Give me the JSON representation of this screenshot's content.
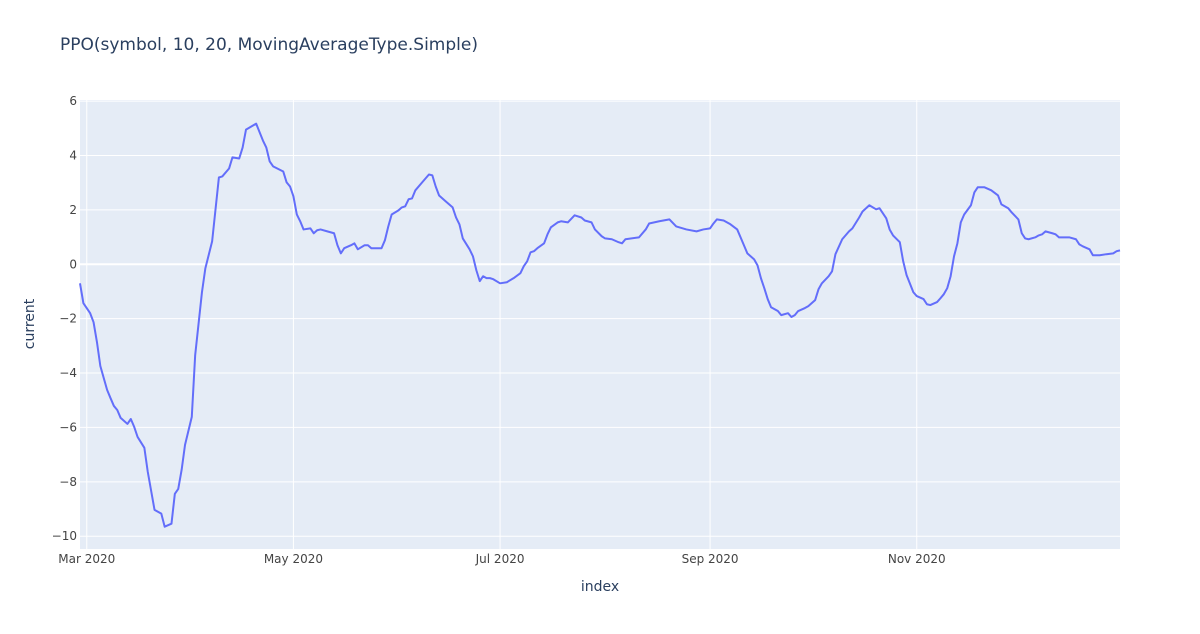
{
  "chart_data": {
    "type": "line",
    "title": "PPO(symbol, 10, 20, MovingAverageType.Simple)",
    "x_label": "index",
    "y_label": "current",
    "color": "#636efa",
    "grid": true,
    "xlim": [
      "2020-02-28",
      "2020-12-31"
    ],
    "ylim": [
      -10.47,
      6.04
    ],
    "xticks": [
      {
        "value": "2020-03-01",
        "label": "Mar 2020"
      },
      {
        "value": "2020-05-01",
        "label": "May 2020"
      },
      {
        "value": "2020-07-01",
        "label": "Jul 2020"
      },
      {
        "value": "2020-09-01",
        "label": "Sep 2020"
      },
      {
        "value": "2020-11-01",
        "label": "Nov 2020"
      }
    ],
    "yticks": [
      {
        "value": -10,
        "label": "−10"
      },
      {
        "value": -8,
        "label": "−8"
      },
      {
        "value": -6,
        "label": "−6"
      },
      {
        "value": -4,
        "label": "−4"
      },
      {
        "value": -2,
        "label": "−2"
      },
      0,
      2,
      4,
      6
    ],
    "x": [
      "2020-02-28",
      "2020-02-29",
      "2020-03-02",
      "2020-03-03",
      "2020-03-04",
      "2020-03-05",
      "2020-03-07",
      "2020-03-08",
      "2020-03-09",
      "2020-03-10",
      "2020-03-11",
      "2020-03-13",
      "2020-03-14",
      "2020-03-15",
      "2020-03-16",
      "2020-03-18",
      "2020-03-19",
      "2020-03-21",
      "2020-03-23",
      "2020-03-24",
      "2020-03-26",
      "2020-03-27",
      "2020-03-28",
      "2020-03-29",
      "2020-03-30",
      "2020-04-01",
      "2020-04-02",
      "2020-04-04",
      "2020-04-05",
      "2020-04-07",
      "2020-04-09",
      "2020-04-10",
      "2020-04-12",
      "2020-04-13",
      "2020-04-15",
      "2020-04-16",
      "2020-04-17",
      "2020-04-20",
      "2020-04-22",
      "2020-04-23",
      "2020-04-24",
      "2020-04-25",
      "2020-04-28",
      "2020-04-29",
      "2020-04-30",
      "2020-05-01",
      "2020-05-02",
      "2020-05-03",
      "2020-05-04",
      "2020-05-06",
      "2020-05-07",
      "2020-05-08",
      "2020-05-09",
      "2020-05-11",
      "2020-05-13",
      "2020-05-14",
      "2020-05-15",
      "2020-05-16",
      "2020-05-18",
      "2020-05-19",
      "2020-05-20",
      "2020-05-22",
      "2020-05-23",
      "2020-05-24",
      "2020-05-25",
      "2020-05-27",
      "2020-05-28",
      "2020-05-29",
      "2020-05-30",
      "2020-06-01",
      "2020-06-02",
      "2020-06-03",
      "2020-06-04",
      "2020-06-05",
      "2020-06-06",
      "2020-06-08",
      "2020-06-10",
      "2020-06-11",
      "2020-06-12",
      "2020-06-13",
      "2020-06-15",
      "2020-06-17",
      "2020-06-18",
      "2020-06-19",
      "2020-06-20",
      "2020-06-22",
      "2020-06-23",
      "2020-06-24",
      "2020-06-25",
      "2020-06-26",
      "2020-06-27",
      "2020-06-28",
      "2020-06-29",
      "2020-07-01",
      "2020-07-03",
      "2020-07-05",
      "2020-07-07",
      "2020-07-08",
      "2020-07-09",
      "2020-07-10",
      "2020-07-11",
      "2020-07-12",
      "2020-07-14",
      "2020-07-15",
      "2020-07-16",
      "2020-07-18",
      "2020-07-19",
      "2020-07-21",
      "2020-07-23",
      "2020-07-25",
      "2020-07-26",
      "2020-07-28",
      "2020-07-29",
      "2020-07-31",
      "2020-08-01",
      "2020-08-03",
      "2020-08-05",
      "2020-08-06",
      "2020-08-07",
      "2020-08-11",
      "2020-08-13",
      "2020-08-14",
      "2020-08-17",
      "2020-08-20",
      "2020-08-22",
      "2020-08-25",
      "2020-08-28",
      "2020-08-30",
      "2020-09-01",
      "2020-09-02",
      "2020-09-03",
      "2020-09-05",
      "2020-09-07",
      "2020-09-09",
      "2020-09-10",
      "2020-09-12",
      "2020-09-14",
      "2020-09-15",
      "2020-09-16",
      "2020-09-17",
      "2020-09-18",
      "2020-09-19",
      "2020-09-21",
      "2020-09-22",
      "2020-09-24",
      "2020-09-25",
      "2020-09-26",
      "2020-09-27",
      "2020-09-29",
      "2020-09-30",
      "2020-10-02",
      "2020-10-03",
      "2020-10-04",
      "2020-10-06",
      "2020-10-07",
      "2020-10-08",
      "2020-10-10",
      "2020-10-12",
      "2020-10-13",
      "2020-10-15",
      "2020-10-16",
      "2020-10-18",
      "2020-10-20",
      "2020-10-21",
      "2020-10-23",
      "2020-10-24",
      "2020-10-25",
      "2020-10-27",
      "2020-10-28",
      "2020-10-29",
      "2020-10-31",
      "2020-11-01",
      "2020-11-03",
      "2020-11-04",
      "2020-11-05",
      "2020-11-07",
      "2020-11-08",
      "2020-11-09",
      "2020-11-10",
      "2020-11-11",
      "2020-11-12",
      "2020-11-13",
      "2020-11-14",
      "2020-11-15",
      "2020-11-17",
      "2020-11-18",
      "2020-11-19",
      "2020-11-21",
      "2020-11-23",
      "2020-11-25",
      "2020-11-26",
      "2020-11-28",
      "2020-11-29",
      "2020-12-01",
      "2020-12-02",
      "2020-12-03",
      "2020-12-04",
      "2020-12-06",
      "2020-12-07",
      "2020-12-08",
      "2020-12-09",
      "2020-12-11",
      "2020-12-12",
      "2020-12-13",
      "2020-12-16",
      "2020-12-18",
      "2020-12-19",
      "2020-12-20",
      "2020-12-22",
      "2020-12-23",
      "2020-12-25",
      "2020-12-27",
      "2020-12-29",
      "2020-12-30",
      "2020-12-31"
    ],
    "values": [
      -0.7,
      -1.43,
      -1.8,
      -2.13,
      -2.86,
      -3.74,
      -4.62,
      -4.92,
      -5.21,
      -5.36,
      -5.65,
      -5.87,
      -5.69,
      -5.98,
      -6.35,
      -6.75,
      -7.63,
      -9.03,
      -9.17,
      -9.65,
      -9.54,
      -8.44,
      -8.26,
      -7.56,
      -6.64,
      -5.61,
      -3.34,
      -1.03,
      -0.15,
      0.84,
      3.19,
      3.23,
      3.52,
      3.93,
      3.89,
      4.29,
      4.95,
      5.17,
      4.55,
      4.29,
      3.78,
      3.6,
      3.41,
      3.01,
      2.86,
      2.5,
      1.83,
      1.58,
      1.28,
      1.32,
      1.14,
      1.25,
      1.28,
      1.21,
      1.14,
      0.7,
      0.4,
      0.59,
      0.7,
      0.77,
      0.55,
      0.7,
      0.7,
      0.59,
      0.59,
      0.59,
      0.88,
      1.39,
      1.83,
      1.98,
      2.09,
      2.13,
      2.39,
      2.42,
      2.72,
      3.01,
      3.3,
      3.27,
      2.86,
      2.53,
      2.31,
      2.09,
      1.72,
      1.47,
      0.95,
      0.55,
      0.29,
      -0.22,
      -0.62,
      -0.44,
      -0.51,
      -0.51,
      -0.55,
      -0.7,
      -0.66,
      -0.51,
      -0.33,
      -0.07,
      0.11,
      0.44,
      0.48,
      0.59,
      0.77,
      1.1,
      1.36,
      1.54,
      1.58,
      1.54,
      1.8,
      1.72,
      1.61,
      1.54,
      1.28,
      1.03,
      0.95,
      0.92,
      0.81,
      0.77,
      0.92,
      0.99,
      1.28,
      1.5,
      1.58,
      1.65,
      1.39,
      1.28,
      1.21,
      1.28,
      1.32,
      1.5,
      1.65,
      1.61,
      1.47,
      1.28,
      0.99,
      0.4,
      0.18,
      -0.04,
      -0.51,
      -0.88,
      -1.28,
      -1.58,
      -1.72,
      -1.87,
      -1.8,
      -1.94,
      -1.87,
      -1.72,
      -1.61,
      -1.54,
      -1.32,
      -0.92,
      -0.7,
      -0.44,
      -0.26,
      0.37,
      0.92,
      1.21,
      1.32,
      1.72,
      1.94,
      2.17,
      2.02,
      2.06,
      1.69,
      1.28,
      1.06,
      0.81,
      0.11,
      -0.4,
      -1.03,
      -1.17,
      -1.28,
      -1.47,
      -1.5,
      -1.39,
      -1.25,
      -1.1,
      -0.88,
      -0.44,
      0.29,
      0.77,
      1.54,
      1.83,
      2.17,
      2.64,
      2.83,
      2.83,
      2.72,
      2.53,
      2.2,
      2.06,
      1.91,
      1.65,
      1.14,
      0.95,
      0.92,
      0.99,
      1.06,
      1.1,
      1.21,
      1.14,
      1.1,
      0.99,
      0.99,
      0.92,
      0.73,
      0.66,
      0.55,
      0.33,
      0.33,
      0.37,
      0.4,
      0.48,
      0.51
    ]
  }
}
